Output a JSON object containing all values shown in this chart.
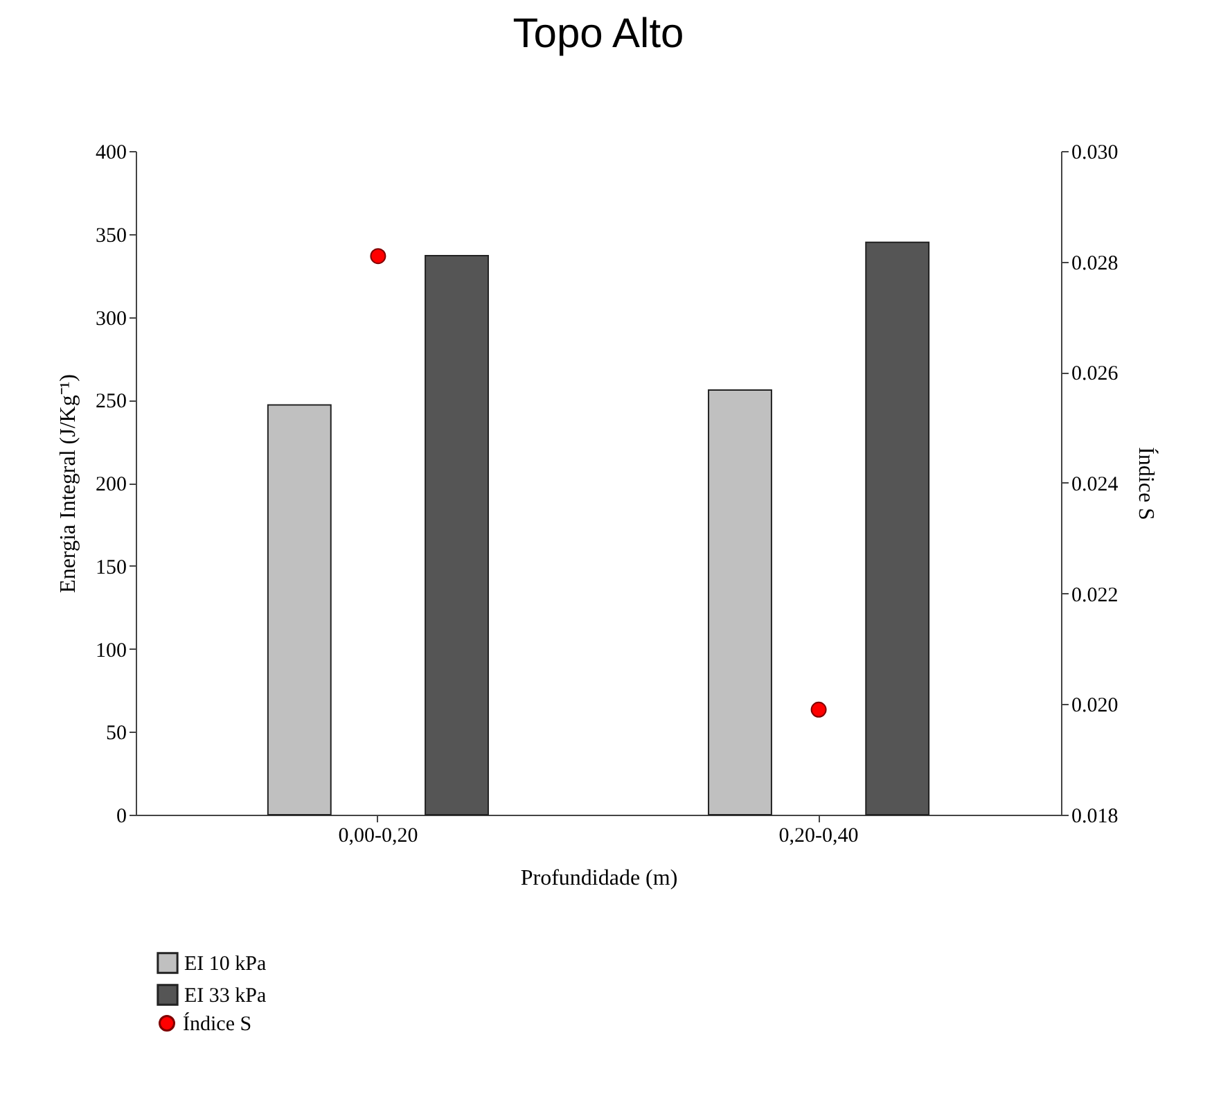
{
  "chart_data": {
    "type": "bar",
    "title": "Topo Alto",
    "xlabel": "Profundidade (m)",
    "ylabel": "Energia Integral (J/Kg⁻¹)",
    "y2label": "Índice S",
    "categories": [
      "0,00-0,20",
      "0,20-0,40"
    ],
    "series": [
      {
        "name": "EI 10 kPa",
        "color": "#c0c0c0",
        "values": [
          247,
          256
        ]
      },
      {
        "name": "EI 33 kPa",
        "color": "#555555",
        "values": [
          337,
          345
        ]
      },
      {
        "name": "Índice S",
        "type": "scatter",
        "axis": "y2",
        "color": "#ff0000",
        "values": [
          0.0281,
          0.0199
        ]
      }
    ],
    "ylim": [
      0,
      400
    ],
    "yticks": [
      0,
      50,
      100,
      150,
      200,
      250,
      300,
      350,
      400
    ],
    "y2lim": [
      0.018,
      0.03
    ],
    "y2ticks": [
      {
        "value": 0.018,
        "label": "0.018"
      },
      {
        "value": 0.02,
        "label": "0.020"
      },
      {
        "value": 0.022,
        "label": "0.022"
      },
      {
        "value": 0.024,
        "label": "0.024"
      },
      {
        "value": 0.026,
        "label": "0.026"
      },
      {
        "value": 0.028,
        "label": "0.028"
      },
      {
        "value": 0.03,
        "label": "0.030"
      }
    ],
    "grid": false,
    "legend": "bottom left",
    "marker": "circle"
  }
}
